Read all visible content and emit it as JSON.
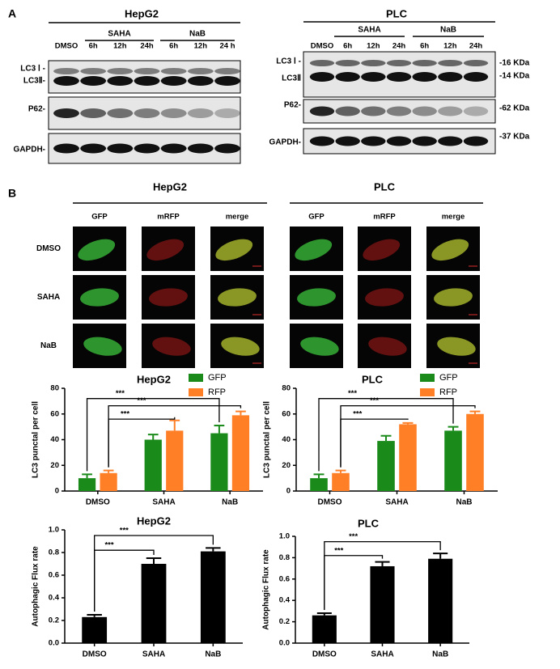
{
  "panel_a": {
    "label": "A",
    "blots": [
      {
        "cell": "HepG2",
        "groups": [
          "SAHA",
          "NaB"
        ],
        "lanes": [
          "DMSO",
          "6h",
          "12h",
          "24h",
          "6h",
          "12h",
          "24 h"
        ],
        "rows": [
          "LC3 Ⅰ -",
          "LC3Ⅱ-",
          "P62-",
          "GAPDH-"
        ]
      },
      {
        "cell": "PLC",
        "groups": [
          "SAHA",
          "NaB"
        ],
        "lanes": [
          "DMSO",
          "6h",
          "12h",
          "24h",
          "6h",
          "12h",
          "24h"
        ],
        "rows": [
          "LC3 Ⅰ -",
          "LC3Ⅱ",
          "P62-",
          "GAPDH-"
        ],
        "sizes": [
          "-16 KDa",
          "-14 KDa",
          "-62 KDa",
          "-37 KDa"
        ]
      }
    ]
  },
  "panel_b": {
    "label": "B",
    "cells": [
      "HepG2",
      "PLC"
    ],
    "channels": [
      "GFP",
      "mRFP",
      "merge"
    ],
    "treatments": [
      "DMSO",
      "SAHA",
      "NaB"
    ]
  },
  "chart_data": [
    {
      "type": "bar",
      "title": "HepG2",
      "y_label": "LC3 punctal  per cell",
      "categories": [
        "DMSO",
        "SAHA",
        "NaB"
      ],
      "series": [
        {
          "name": "GFP",
          "color": "#1a8a1a",
          "values": [
            10,
            40,
            45
          ],
          "errors": [
            3,
            4,
            6
          ]
        },
        {
          "name": "RFP",
          "color": "#ff7f27",
          "values": [
            14,
            47,
            59
          ],
          "errors": [
            2,
            8,
            3
          ]
        }
      ],
      "ylim": [
        0,
        80
      ],
      "yticks": [
        0,
        20,
        40,
        60,
        80
      ],
      "annotations": [
        "***",
        "***",
        "***"
      ]
    },
    {
      "type": "bar",
      "title": "PLC",
      "y_label": "LC3 punctal  per cell",
      "categories": [
        "DMSO",
        "SAHA",
        "NaB"
      ],
      "series": [
        {
          "name": "GFP",
          "color": "#1a8a1a",
          "values": [
            10,
            39,
            47
          ],
          "errors": [
            3,
            4,
            3
          ]
        },
        {
          "name": "RFP",
          "color": "#ff7f27",
          "values": [
            14,
            52,
            60
          ],
          "errors": [
            2,
            1,
            2
          ]
        }
      ],
      "ylim": [
        0,
        80
      ],
      "yticks": [
        0,
        20,
        40,
        60,
        80
      ],
      "annotations": [
        "***",
        "***",
        "***"
      ]
    },
    {
      "type": "bar",
      "title": "HepG2",
      "y_label": "Autophagic Flux rate",
      "categories": [
        "DMSO",
        "SAHA",
        "NaB"
      ],
      "series": [
        {
          "color": "#000000",
          "values": [
            0.23,
            0.7,
            0.81
          ],
          "errors": [
            0.02,
            0.05,
            0.03
          ]
        }
      ],
      "ylim": [
        0,
        1
      ],
      "yticks": [
        {
          "value": 0,
          "label": "0.0"
        },
        0.2,
        0.4,
        0.6,
        0.8,
        {
          "value": 1,
          "label": "1.0"
        }
      ],
      "annotations": [
        "***",
        "***"
      ]
    },
    {
      "type": "bar",
      "title": "PLC",
      "y_label": "Autophagic Flux rate",
      "categories": [
        "DMSO",
        "SAHA",
        "NaB"
      ],
      "series": [
        {
          "color": "#000000",
          "values": [
            0.26,
            0.72,
            0.79
          ],
          "errors": [
            0.02,
            0.04,
            0.05
          ]
        }
      ],
      "ylim": [
        0,
        1
      ],
      "yticks": [
        {
          "value": 0,
          "label": "0.0"
        },
        0.2,
        0.4,
        0.6,
        0.8,
        {
          "value": 1,
          "label": "1.0"
        }
      ],
      "annotations": [
        "***",
        "***"
      ]
    }
  ]
}
